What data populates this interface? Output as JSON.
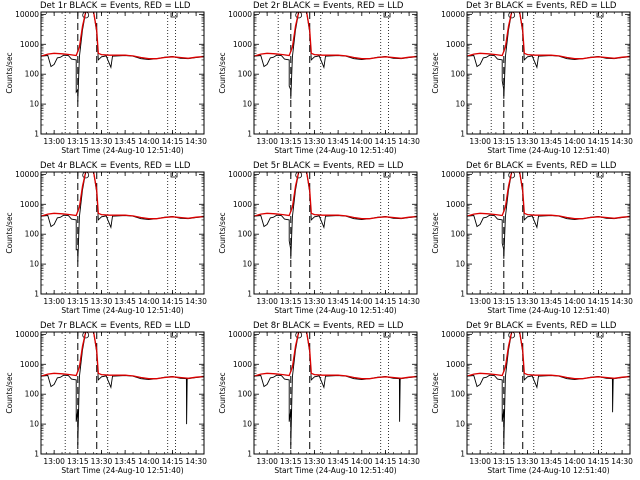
{
  "figure": {
    "colors": {
      "events": "#000000",
      "lld": "#dd0000",
      "background": "#ffffff"
    }
  },
  "chart_data": {
    "type": "line",
    "rows": 3,
    "cols": 3,
    "xlabel": "Start Time (24-Aug-10 12:51:40)",
    "ylabel": "Counts/sec",
    "xlim": [
      "12:51:40",
      "14:35:00"
    ],
    "ylim": [
      1,
      12000
    ],
    "yscale": "log",
    "yticks": [
      1,
      10,
      100,
      1000,
      10000
    ],
    "ytick_labels": [
      "1",
      "10",
      "100",
      "1000",
      "10000"
    ],
    "xticks": [
      "13:00",
      "13:15",
      "13:30",
      "13:45",
      "14:00",
      "14:15",
      "14:30"
    ],
    "xtick_labels": [
      "13:00",
      "13:15",
      "13:30",
      "13:45",
      "14:00",
      "14:15",
      "14:30"
    ],
    "grid": "dotted vertical lines",
    "dotted_lines": [
      "13:07",
      "13:34",
      "14:12",
      "14:17"
    ],
    "dashed_lines": [
      "13:15",
      "13:27"
    ],
    "series_legend": "BLACK = Events, RED = LLD",
    "base_series": {
      "events": [
        [
          "12:51:40",
          400
        ],
        [
          "12:56",
          420
        ],
        [
          "12:58",
          180
        ],
        [
          "13:00",
          210
        ],
        [
          "13:02",
          350
        ],
        [
          "13:04",
          370
        ],
        [
          "13:06",
          430
        ],
        [
          "13:09",
          420
        ],
        [
          "13:11",
          320
        ],
        [
          "13:14",
          300
        ],
        [
          "13:15",
          30
        ],
        [
          "13:16",
          380
        ],
        [
          "13:18",
          3000
        ],
        [
          "13:20",
          12000
        ],
        [
          "13:25",
          12000
        ],
        [
          "13:27",
          2500
        ],
        [
          "13:28",
          300
        ],
        [
          "13:30",
          380
        ],
        [
          "13:33",
          410
        ],
        [
          "13:36",
          170
        ],
        [
          "13:37",
          400
        ],
        [
          "13:45",
          420
        ],
        [
          "13:50",
          400
        ],
        [
          "13:55",
          330
        ],
        [
          "14:00",
          310
        ],
        [
          "14:05",
          330
        ],
        [
          "14:10",
          370
        ],
        [
          "14:15",
          390
        ],
        [
          "14:20",
          340
        ],
        [
          "14:25",
          330
        ],
        [
          "14:30",
          360
        ],
        [
          "14:35",
          380
        ]
      ],
      "lld": [
        [
          "12:51:40",
          400
        ],
        [
          "12:56",
          470
        ],
        [
          "13:00",
          500
        ],
        [
          "13:05",
          480
        ],
        [
          "13:10",
          450
        ],
        [
          "13:14",
          420
        ],
        [
          "13:16",
          800
        ],
        [
          "13:18",
          4000
        ],
        [
          "13:20",
          12000
        ],
        [
          "13:25",
          12000
        ],
        [
          "13:27",
          3000
        ],
        [
          "13:28",
          500
        ],
        [
          "13:30",
          450
        ],
        [
          "13:35",
          430
        ],
        [
          "13:45",
          430
        ],
        [
          "13:50",
          410
        ],
        [
          "13:55",
          360
        ],
        [
          "14:00",
          330
        ],
        [
          "14:05",
          330
        ],
        [
          "14:10",
          360
        ],
        [
          "14:15",
          380
        ],
        [
          "14:20",
          360
        ],
        [
          "14:25",
          340
        ],
        [
          "14:30",
          370
        ],
        [
          "14:35",
          390
        ]
      ]
    },
    "panels": [
      {
        "title": "Det 1r BLACK = Events, RED = LLD",
        "dips": [
          [
            "13:14",
            25
          ],
          [
            "13:15",
            12
          ]
        ],
        "tail": null
      },
      {
        "title": "Det 2r BLACK = Events, RED = LLD",
        "dips": [
          [
            "13:14",
            40
          ],
          [
            "13:15",
            15
          ]
        ],
        "tail": null
      },
      {
        "title": "Det 3r BLACK = Events, RED = LLD",
        "dips": [
          [
            "13:14",
            60
          ],
          [
            "13:15",
            15
          ]
        ],
        "tail": null
      },
      {
        "title": "Det 4r BLACK = Events, RED = LLD",
        "dips": [
          [
            "13:14",
            30
          ],
          [
            "13:15",
            12
          ]
        ],
        "tail": null
      },
      {
        "title": "Det 5r BLACK = Events, RED = LLD",
        "dips": [
          [
            "13:14",
            60
          ],
          [
            "13:15",
            15
          ]
        ],
        "tail": null
      },
      {
        "title": "Det 6r BLACK = Events, RED = LLD",
        "dips": [
          [
            "13:14",
            50
          ],
          [
            "13:15",
            15
          ]
        ],
        "tail": null
      },
      {
        "title": "Det 7r BLACK = Events, RED = LLD",
        "dips": [
          [
            "13:14",
            12
          ],
          [
            "13:15",
            2
          ]
        ],
        "tail": 10
      },
      {
        "title": "Det 8r BLACK = Events, RED = LLD",
        "dips": [
          [
            "13:14",
            12
          ],
          [
            "13:15",
            2
          ]
        ],
        "tail": 12
      },
      {
        "title": "Det 9r BLACK = Events, RED = LLD",
        "dips": [
          [
            "13:14",
            12
          ],
          [
            "13:15",
            2
          ]
        ],
        "tail": 25
      }
    ]
  }
}
